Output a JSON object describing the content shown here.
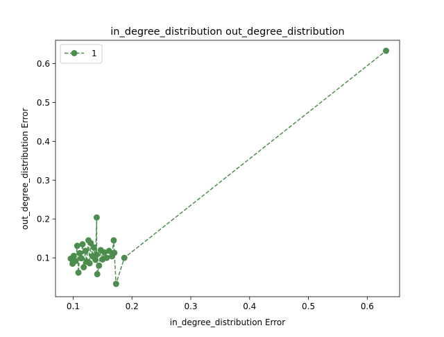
{
  "chart_data": {
    "type": "scatter",
    "title": "in_degree_distribution out_degree_distribution",
    "xlabel": "in_degree_distribution Error",
    "ylabel": "out_degree_distribution Error",
    "xlim": [
      0.07,
      0.655
    ],
    "ylim": [
      0.0,
      0.66
    ],
    "xticks": [
      0.1,
      0.2,
      0.3,
      0.4,
      0.5,
      0.6
    ],
    "yticks": [
      0.1,
      0.2,
      0.3,
      0.4,
      0.5,
      0.6
    ],
    "xtick_labels": [
      "0.1",
      "0.2",
      "0.3",
      "0.4",
      "0.5",
      "0.6"
    ],
    "ytick_labels": [
      "0.1",
      "0.2",
      "0.3",
      "0.4",
      "0.5",
      "0.6"
    ],
    "grid": false,
    "legend_position": "upper-left",
    "series": [
      {
        "name": "1",
        "color": "#4c8c4c",
        "linestyle": "dashed",
        "marker": "circle",
        "x": [
          0.096,
          0.099,
          0.101,
          0.104,
          0.107,
          0.109,
          0.111,
          0.114,
          0.116,
          0.118,
          0.121,
          0.123,
          0.126,
          0.128,
          0.13,
          0.133,
          0.135,
          0.138,
          0.14,
          0.14,
          0.141,
          0.144,
          0.147,
          0.15,
          0.153,
          0.157,
          0.161,
          0.166,
          0.169,
          0.17,
          0.173,
          0.187,
          0.632
        ],
        "y": [
          0.098,
          0.085,
          0.105,
          0.092,
          0.131,
          0.062,
          0.112,
          0.099,
          0.135,
          0.076,
          0.118,
          0.09,
          0.145,
          0.086,
          0.138,
          0.104,
          0.127,
          0.095,
          0.204,
          0.108,
          0.058,
          0.08,
          0.12,
          0.096,
          0.114,
          0.1,
          0.118,
          0.104,
          0.145,
          0.113,
          0.033,
          0.1,
          0.633
        ]
      }
    ]
  }
}
